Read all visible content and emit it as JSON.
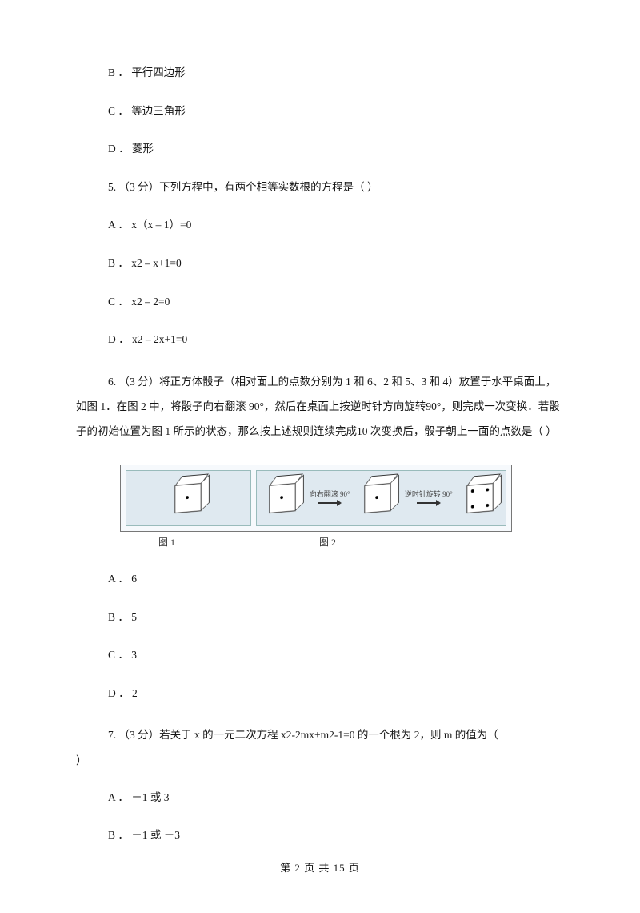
{
  "partial_options": {
    "b": "B ． 平行四边形",
    "c": "C ． 等边三角形",
    "d": "D ． 菱形"
  },
  "q5": {
    "stem": "5.  （3 分）下列方程中，有两个相等实数根的方程是（      ）",
    "a": "A ． x（x – 1）=0",
    "b": "B ． x2 – x+1=0",
    "c": "C ． x2 – 2=0",
    "d": "D ． x2 – 2x+1=0"
  },
  "q6": {
    "stem": "6.   （3 分）将正方体骰子（相对面上的点数分别为 1 和 6、2 和 5、3 和 4）放置于水平桌面上，如图 1．在图 2 中，将骰子向右翻滚 90°，然后在桌面上按逆时针方向旋转90°，则完成一次变换．若骰子的初始位置为图 1 所示的状态，那么按上述规则连续完成10 次变换后，骰子朝上一面的点数是（      ）",
    "fig_label1": "图 1",
    "fig_label2": "图 2",
    "arrow1": "向右翻滚 90°",
    "arrow2": "逆时针旋转 90°",
    "a": "A ． 6",
    "b": "B ． 5",
    "c": "C ． 3",
    "d": "D ． 2"
  },
  "q7": {
    "stem_first": "7.     （3 分）若关于 x 的一元二次方程 x2-2mx+m2-1=0 的一个根为 2，则 m 的值为（",
    "stem_rest": "）",
    "a": "A ． －1 或 3",
    "b": "B ． －1 或 －3"
  },
  "footer": "第  2  页  共  15  页"
}
